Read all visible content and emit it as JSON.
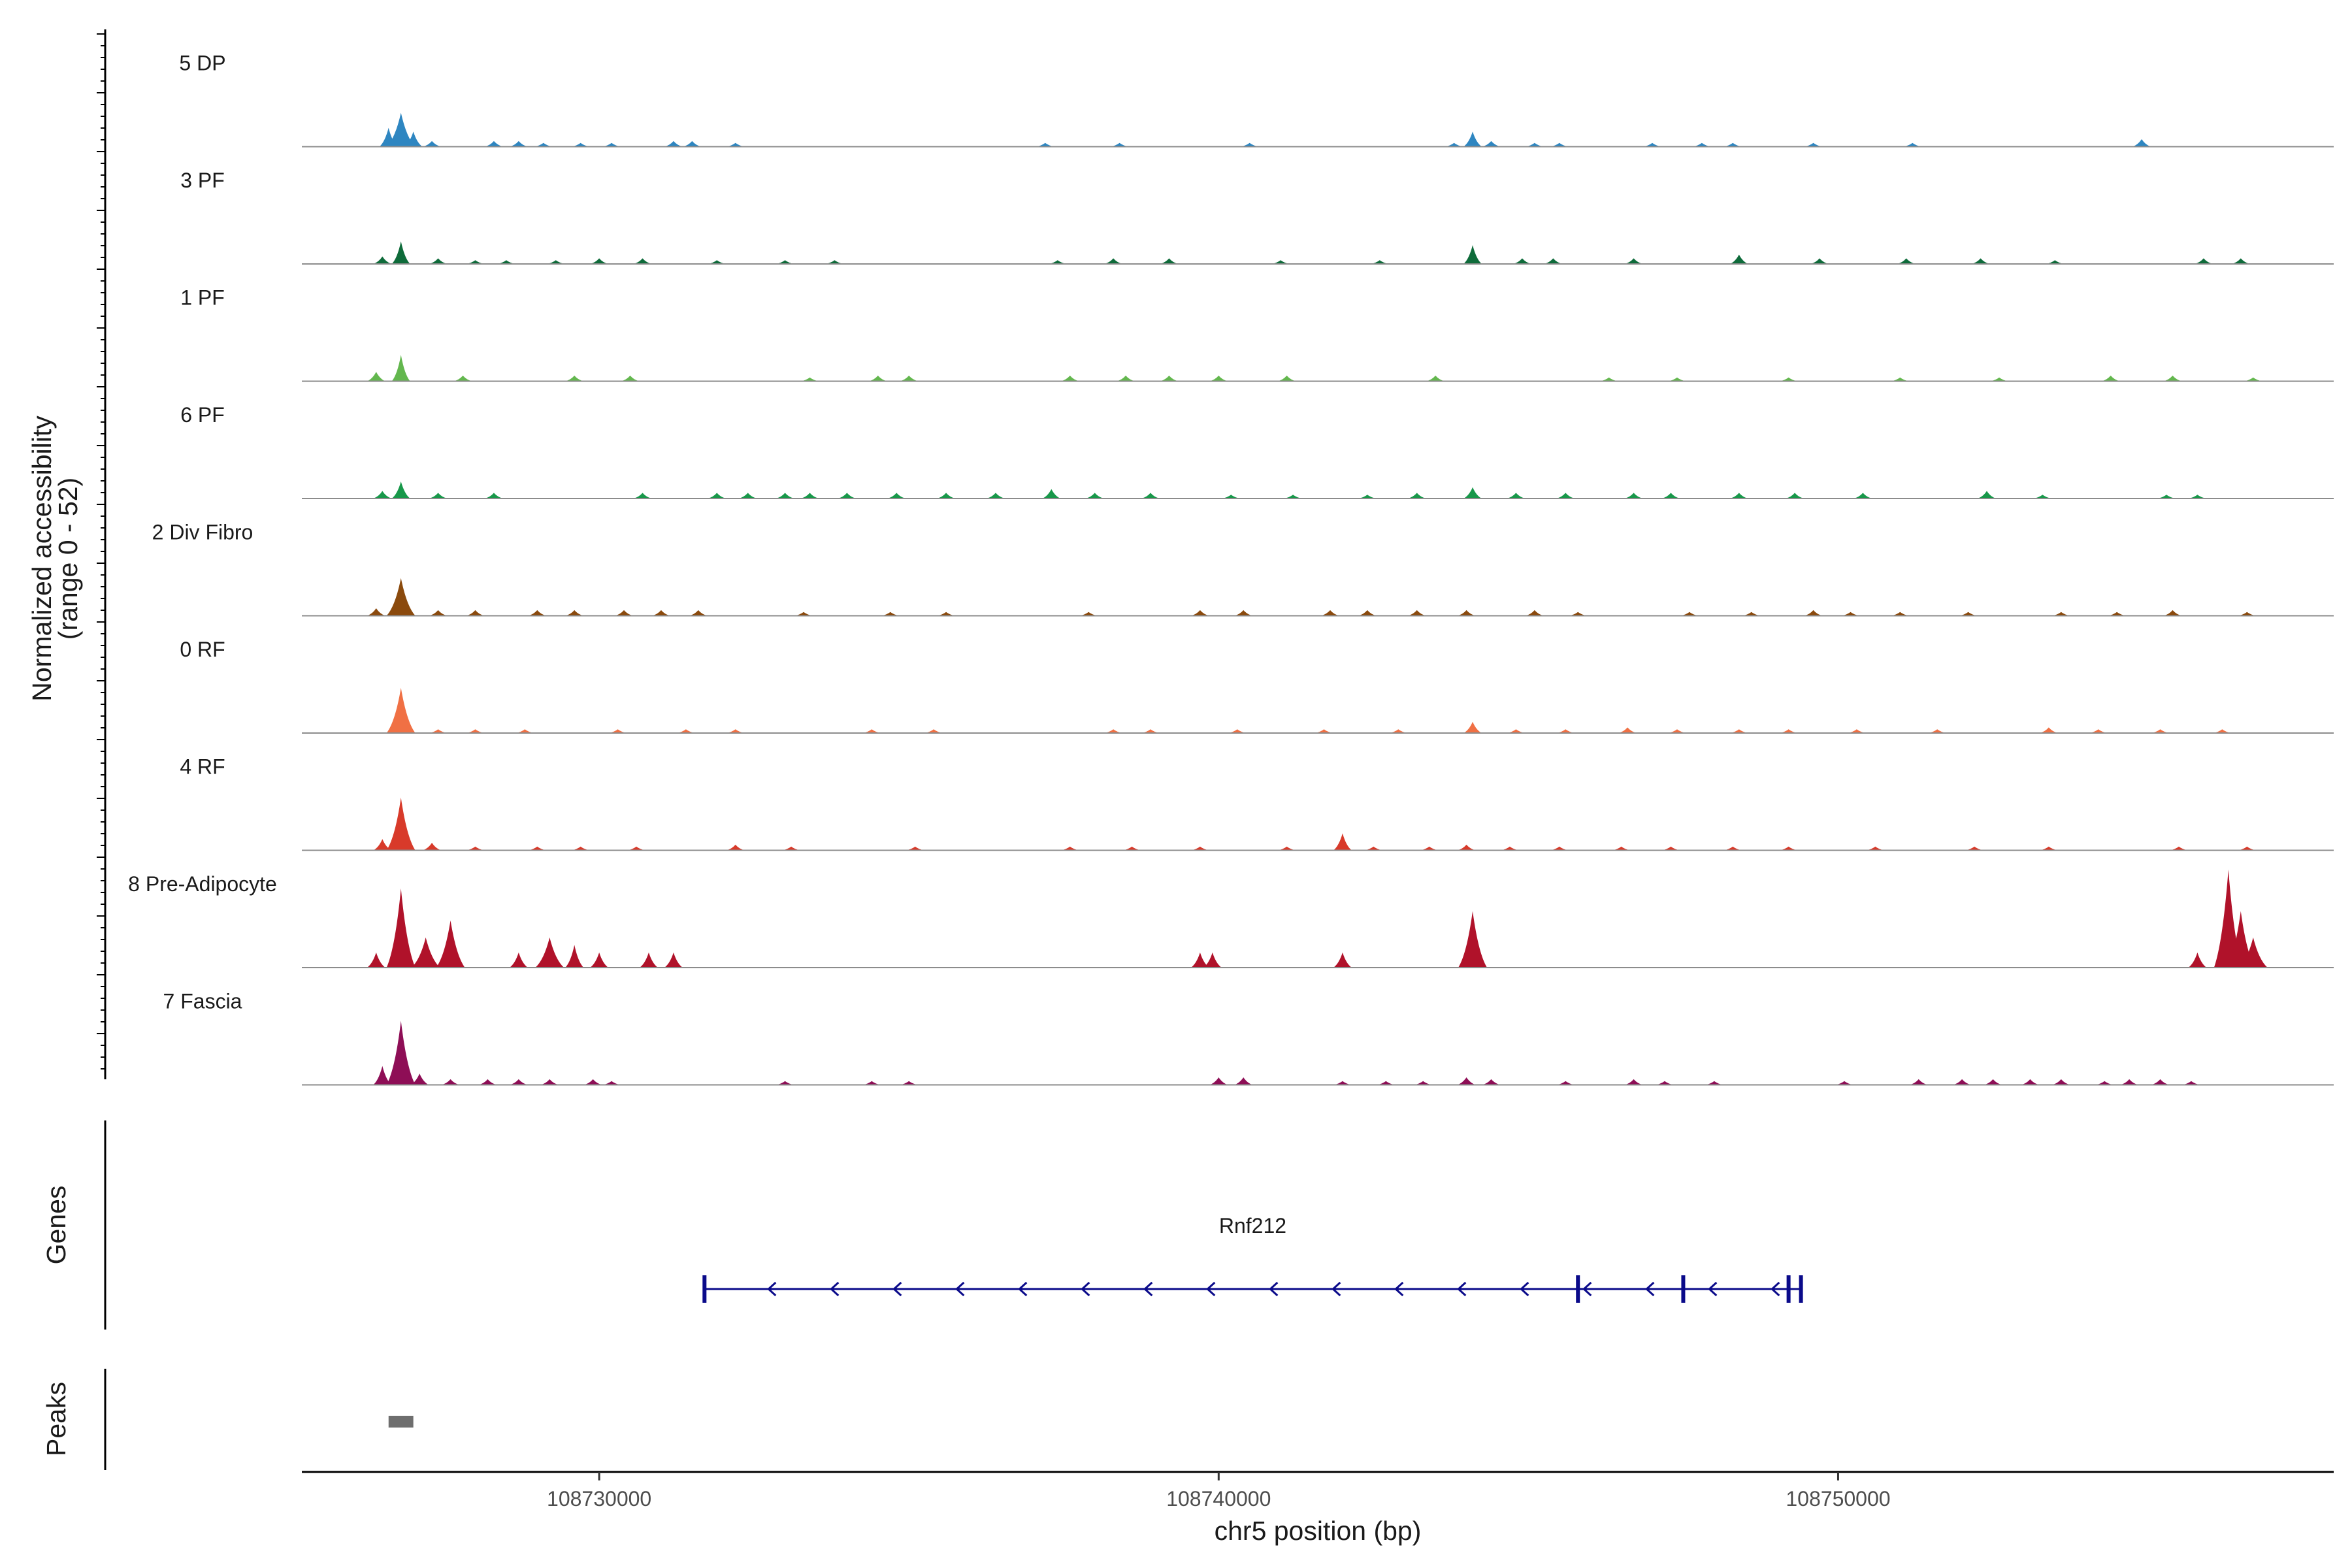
{
  "chart_data": {
    "type": "area",
    "title": "",
    "xlabel": "chr5 position (bp)",
    "ylabel": "Normalized accessibility",
    "ylabel_range": "(range 0 - 52)",
    "ylim": [
      0,
      52
    ],
    "xlim": [
      108725200,
      108758000
    ],
    "x_ticks": [
      108730000,
      108740000,
      108750000
    ],
    "x_tick_labels": [
      "108730000",
      "108740000",
      "108750000"
    ],
    "tracks": [
      {
        "name": "5 DP",
        "color": "#2E86C1",
        "peaks": [
          [
            108726800,
            18
          ],
          [
            108726600,
            10
          ],
          [
            108727000,
            8
          ],
          [
            108727300,
            3
          ],
          [
            108728300,
            3
          ],
          [
            108728700,
            3
          ],
          [
            108729100,
            2
          ],
          [
            108729700,
            2
          ],
          [
            108730200,
            2
          ],
          [
            108731200,
            3
          ],
          [
            108731500,
            3
          ],
          [
            108732200,
            2
          ],
          [
            108737200,
            2
          ],
          [
            108738400,
            2
          ],
          [
            108740500,
            2
          ],
          [
            108743800,
            2
          ],
          [
            108744100,
            8
          ],
          [
            108744400,
            3
          ],
          [
            108745100,
            2
          ],
          [
            108745500,
            2
          ],
          [
            108747000,
            2
          ],
          [
            108747800,
            2
          ],
          [
            108748300,
            2
          ],
          [
            108749600,
            2
          ],
          [
            108751200,
            2
          ],
          [
            108754900,
            4
          ]
        ]
      },
      {
        "name": "3 PF",
        "color": "#0E6B3A",
        "peaks": [
          [
            108726800,
            12
          ],
          [
            108726500,
            4
          ],
          [
            108727400,
            3
          ],
          [
            108728000,
            2
          ],
          [
            108728500,
            2
          ],
          [
            108729300,
            2
          ],
          [
            108730000,
            3
          ],
          [
            108730700,
            3
          ],
          [
            108731900,
            2
          ],
          [
            108733000,
            2
          ],
          [
            108733800,
            2
          ],
          [
            108737400,
            2
          ],
          [
            108738300,
            3
          ],
          [
            108739200,
            3
          ],
          [
            108741000,
            2
          ],
          [
            108742600,
            2
          ],
          [
            108744100,
            10
          ],
          [
            108744900,
            3
          ],
          [
            108745400,
            3
          ],
          [
            108746700,
            3
          ],
          [
            108748400,
            5
          ],
          [
            108749700,
            3
          ],
          [
            108751100,
            3
          ],
          [
            108752300,
            3
          ],
          [
            108753500,
            2
          ],
          [
            108755900,
            3
          ],
          [
            108756500,
            3
          ]
        ]
      },
      {
        "name": "1 PF",
        "color": "#63B74E",
        "peaks": [
          [
            108726800,
            14
          ],
          [
            108726400,
            5
          ],
          [
            108727800,
            3
          ],
          [
            108729600,
            3
          ],
          [
            108730500,
            3
          ],
          [
            108733400,
            2
          ],
          [
            108734500,
            3
          ],
          [
            108735000,
            3
          ],
          [
            108737600,
            3
          ],
          [
            108738500,
            3
          ],
          [
            108739200,
            3
          ],
          [
            108740000,
            3
          ],
          [
            108741100,
            3
          ],
          [
            108743500,
            3
          ],
          [
            108746300,
            2
          ],
          [
            108747400,
            2
          ],
          [
            108749200,
            2
          ],
          [
            108751000,
            2
          ],
          [
            108752600,
            2
          ],
          [
            108754400,
            3
          ],
          [
            108755400,
            3
          ],
          [
            108756700,
            2
          ]
        ]
      },
      {
        "name": "6 PF",
        "color": "#18984A",
        "peaks": [
          [
            108726800,
            9
          ],
          [
            108726500,
            4
          ],
          [
            108727400,
            3
          ],
          [
            108728300,
            3
          ],
          [
            108730700,
            3
          ],
          [
            108731900,
            3
          ],
          [
            108732400,
            3
          ],
          [
            108733000,
            3
          ],
          [
            108733400,
            3
          ],
          [
            108734000,
            3
          ],
          [
            108734800,
            3
          ],
          [
            108735600,
            3
          ],
          [
            108736400,
            3
          ],
          [
            108737300,
            5
          ],
          [
            108738000,
            3
          ],
          [
            108738900,
            3
          ],
          [
            108740200,
            2
          ],
          [
            108741200,
            2
          ],
          [
            108742400,
            2
          ],
          [
            108743200,
            3
          ],
          [
            108744100,
            6
          ],
          [
            108744800,
            3
          ],
          [
            108745600,
            3
          ],
          [
            108746700,
            3
          ],
          [
            108747300,
            3
          ],
          [
            108748400,
            3
          ],
          [
            108749300,
            3
          ],
          [
            108750400,
            3
          ],
          [
            108752400,
            4
          ],
          [
            108753300,
            2
          ],
          [
            108755300,
            2
          ],
          [
            108755800,
            2
          ]
        ]
      },
      {
        "name": "2 Div Fibro",
        "color": "#8B4A0D",
        "peaks": [
          [
            108726800,
            20
          ],
          [
            108726400,
            4
          ],
          [
            108727400,
            3
          ],
          [
            108728000,
            3
          ],
          [
            108729000,
            3
          ],
          [
            108729600,
            3
          ],
          [
            108730400,
            3
          ],
          [
            108731000,
            3
          ],
          [
            108731600,
            3
          ],
          [
            108733300,
            2
          ],
          [
            108734700,
            2
          ],
          [
            108735600,
            2
          ],
          [
            108737900,
            2
          ],
          [
            108739700,
            3
          ],
          [
            108740400,
            3
          ],
          [
            108741800,
            3
          ],
          [
            108742400,
            3
          ],
          [
            108743200,
            3
          ],
          [
            108744000,
            3
          ],
          [
            108745100,
            3
          ],
          [
            108745800,
            2
          ],
          [
            108747600,
            2
          ],
          [
            108748600,
            2
          ],
          [
            108749600,
            3
          ],
          [
            108750200,
            2
          ],
          [
            108751000,
            2
          ],
          [
            108752100,
            2
          ],
          [
            108753600,
            2
          ],
          [
            108754500,
            2
          ],
          [
            108755400,
            3
          ],
          [
            108756600,
            2
          ]
        ]
      },
      {
        "name": "0 RF",
        "color": "#F07044",
        "peaks": [
          [
            108726800,
            24
          ],
          [
            108727400,
            2
          ],
          [
            108728000,
            2
          ],
          [
            108728800,
            2
          ],
          [
            108730300,
            2
          ],
          [
            108731400,
            2
          ],
          [
            108732200,
            2
          ],
          [
            108734400,
            2
          ],
          [
            108735400,
            2
          ],
          [
            108738300,
            2
          ],
          [
            108738900,
            2
          ],
          [
            108740300,
            2
          ],
          [
            108741700,
            2
          ],
          [
            108742900,
            2
          ],
          [
            108744100,
            6
          ],
          [
            108744800,
            2
          ],
          [
            108745600,
            2
          ],
          [
            108746600,
            3
          ],
          [
            108747400,
            2
          ],
          [
            108748400,
            2
          ],
          [
            108749200,
            2
          ],
          [
            108750300,
            2
          ],
          [
            108751600,
            2
          ],
          [
            108753400,
            3
          ],
          [
            108754200,
            2
          ],
          [
            108755200,
            2
          ],
          [
            108756200,
            2
          ]
        ]
      },
      {
        "name": "4 RF",
        "color": "#D83A2A",
        "peaks": [
          [
            108726800,
            28
          ],
          [
            108726500,
            6
          ],
          [
            108727300,
            4
          ],
          [
            108728000,
            2
          ],
          [
            108729000,
            2
          ],
          [
            108729700,
            2
          ],
          [
            108730600,
            2
          ],
          [
            108732200,
            3
          ],
          [
            108733100,
            2
          ],
          [
            108735100,
            2
          ],
          [
            108737600,
            2
          ],
          [
            108738600,
            2
          ],
          [
            108739700,
            2
          ],
          [
            108741100,
            2
          ],
          [
            108742000,
            9
          ],
          [
            108742500,
            2
          ],
          [
            108743400,
            2
          ],
          [
            108744000,
            3
          ],
          [
            108744700,
            2
          ],
          [
            108745500,
            2
          ],
          [
            108746500,
            2
          ],
          [
            108747300,
            2
          ],
          [
            108748300,
            2
          ],
          [
            108749200,
            2
          ],
          [
            108750600,
            2
          ],
          [
            108752200,
            2
          ],
          [
            108753400,
            2
          ],
          [
            108755500,
            2
          ],
          [
            108756600,
            2
          ]
        ]
      },
      {
        "name": "8 Pre-Adipocyte",
        "color": "#B0122A",
        "peaks": [
          [
            108726800,
            42
          ],
          [
            108726400,
            8
          ],
          [
            108727200,
            16
          ],
          [
            108727600,
            25
          ],
          [
            108728700,
            8
          ],
          [
            108729200,
            16
          ],
          [
            108729600,
            12
          ],
          [
            108730000,
            8
          ],
          [
            108730800,
            8
          ],
          [
            108731200,
            8
          ],
          [
            108739700,
            8
          ],
          [
            108739900,
            8
          ],
          [
            108742000,
            8
          ],
          [
            108744100,
            30
          ],
          [
            108755800,
            8
          ],
          [
            108756300,
            52
          ],
          [
            108756500,
            30
          ],
          [
            108756700,
            16
          ]
        ]
      },
      {
        "name": "7 Fascia",
        "color": "#8E0E56",
        "peaks": [
          [
            108726800,
            34
          ],
          [
            108726500,
            10
          ],
          [
            108727100,
            6
          ],
          [
            108727600,
            3
          ],
          [
            108728200,
            3
          ],
          [
            108728700,
            3
          ],
          [
            108729200,
            3
          ],
          [
            108729900,
            3
          ],
          [
            108730200,
            2
          ],
          [
            108733000,
            2
          ],
          [
            108734400,
            2
          ],
          [
            108735000,
            2
          ],
          [
            108740000,
            4
          ],
          [
            108740400,
            4
          ],
          [
            108742000,
            2
          ],
          [
            108742700,
            2
          ],
          [
            108743300,
            2
          ],
          [
            108744000,
            4
          ],
          [
            108744400,
            3
          ],
          [
            108745600,
            2
          ],
          [
            108746700,
            3
          ],
          [
            108747200,
            2
          ],
          [
            108748000,
            2
          ],
          [
            108750100,
            2
          ],
          [
            108751300,
            3
          ],
          [
            108752000,
            3
          ],
          [
            108752500,
            3
          ],
          [
            108753100,
            3
          ],
          [
            108753600,
            3
          ],
          [
            108754300,
            2
          ],
          [
            108754700,
            3
          ],
          [
            108755200,
            3
          ],
          [
            108755700,
            2
          ]
        ]
      }
    ],
    "genes": {
      "label": "Genes",
      "items": [
        {
          "name": "Rnf212",
          "start": 108731700,
          "end": 108749400,
          "strand": "-",
          "exons": [
            108731700,
            108745800,
            108747500,
            108749200,
            108749400
          ]
        }
      ]
    },
    "peaks_track": {
      "label": "Peaks",
      "regions": [
        [
          108726600,
          108727000
        ]
      ]
    }
  }
}
